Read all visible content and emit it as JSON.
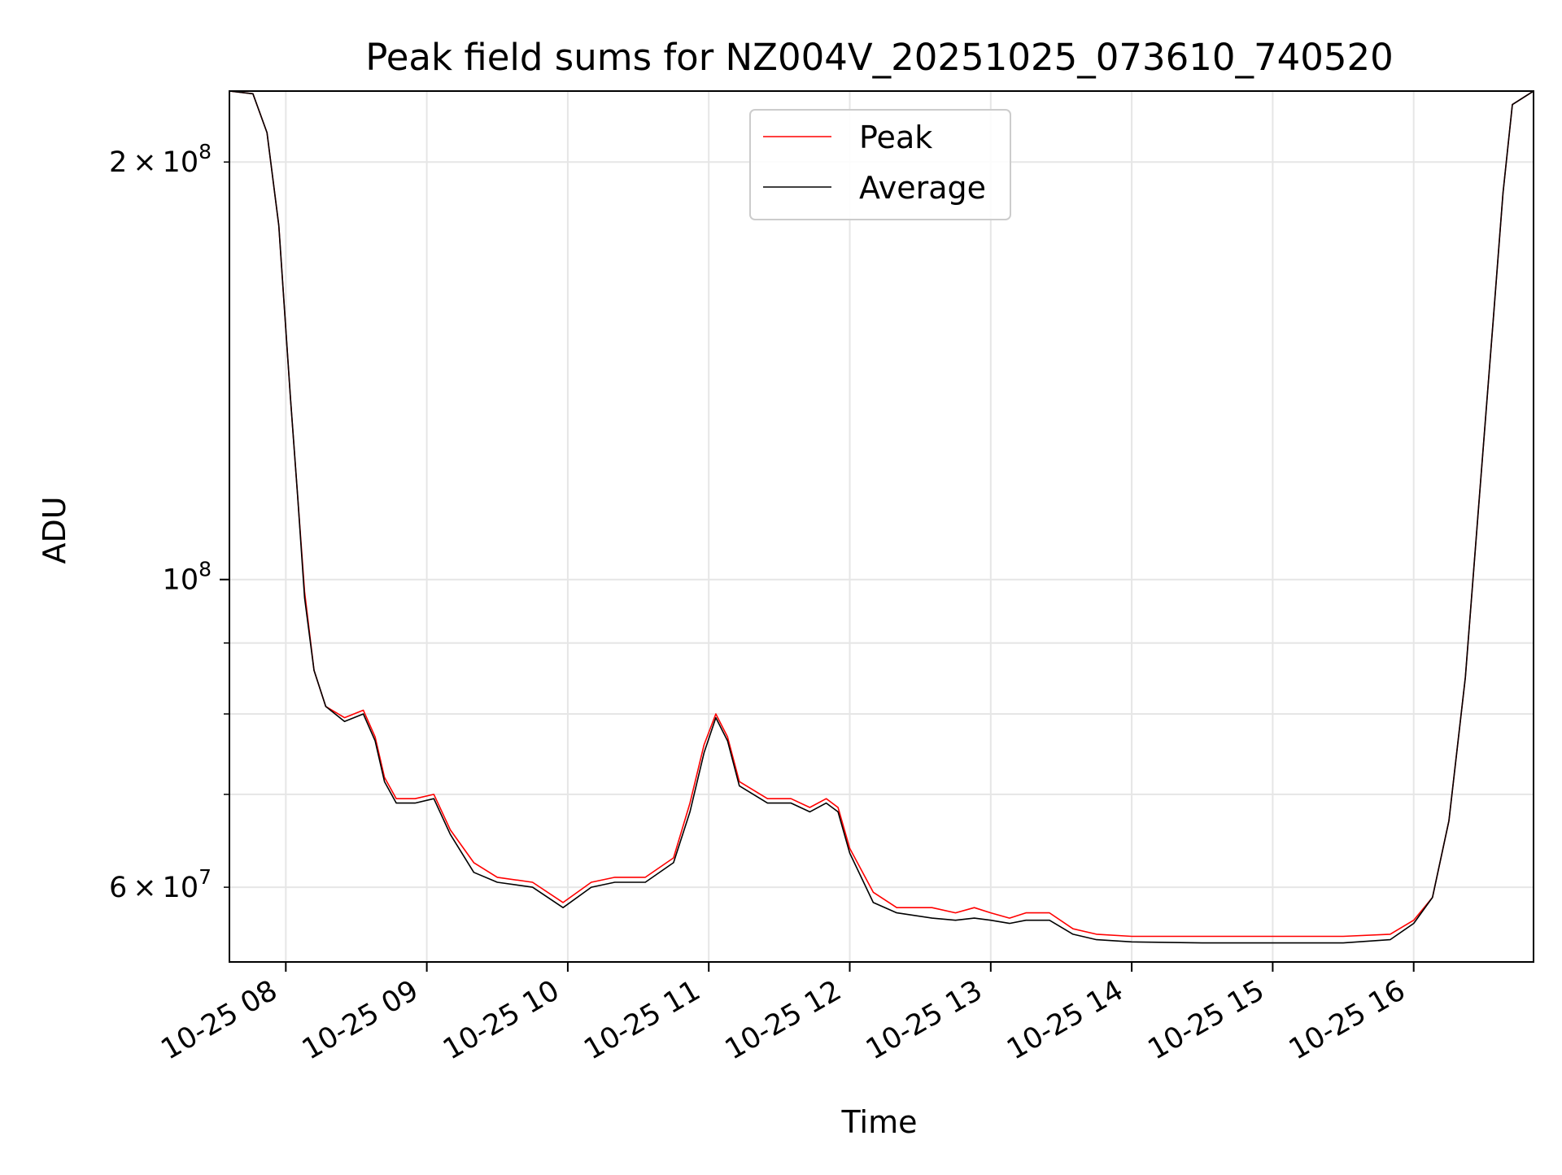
{
  "chart_data": {
    "type": "line",
    "title": "Peak field sums for NZ004V_20251025_073610_740520",
    "xlabel": "Time",
    "ylabel": "ADU",
    "x_axis": {
      "type": "datetime",
      "range": [
        "2025-10-25T07:36",
        "2025-10-25T16:51"
      ],
      "ticks": [
        "2025-10-25T08:00",
        "2025-10-25T09:00",
        "2025-10-25T10:00",
        "2025-10-25T11:00",
        "2025-10-25T12:00",
        "2025-10-25T13:00",
        "2025-10-25T14:00",
        "2025-10-25T15:00",
        "2025-10-25T16:00"
      ],
      "tick_labels": [
        "10-25 08",
        "10-25 09",
        "10-25 10",
        "10-25 11",
        "10-25 12",
        "10-25 13",
        "10-25 14",
        "10-25 15",
        "10-25 16"
      ],
      "tick_label_rotation": 30
    },
    "y_axis": {
      "scale": "log",
      "range": [
        53000000,
        225000000
      ],
      "major_ticks": [
        100000000
      ],
      "minor_labeled_ticks": [
        60000000,
        200000000
      ],
      "tick_labels": [
        {
          "value": 200000000,
          "mantissa": "2",
          "exponent": "8"
        },
        {
          "value": 100000000,
          "mantissa": "",
          "exponent": "8"
        },
        {
          "value": 60000000,
          "mantissa": "6",
          "exponent": "7"
        }
      ],
      "minor_ticks": [
        60000000,
        70000000,
        80000000,
        90000000,
        200000000
      ]
    },
    "grid": true,
    "legend": {
      "placement": "top-center"
    },
    "series": [
      {
        "name": "Peak",
        "color": "#ff0000",
        "x": [
          "2025-10-25T07:36",
          "2025-10-25T07:46",
          "2025-10-25T07:52",
          "2025-10-25T07:57",
          "2025-10-25T08:02",
          "2025-10-25T08:05",
          "2025-10-25T08:08",
          "2025-10-25T08:12",
          "2025-10-25T08:17",
          "2025-10-25T08:25",
          "2025-10-25T08:33",
          "2025-10-25T08:38",
          "2025-10-25T08:42",
          "2025-10-25T08:47",
          "2025-10-25T08:55",
          "2025-10-25T09:03",
          "2025-10-25T09:10",
          "2025-10-25T09:20",
          "2025-10-25T09:30",
          "2025-10-25T09:45",
          "2025-10-25T09:58",
          "2025-10-25T10:10",
          "2025-10-25T10:20",
          "2025-10-25T10:33",
          "2025-10-25T10:45",
          "2025-10-25T10:52",
          "2025-10-25T10:58",
          "2025-10-25T11:03",
          "2025-10-25T11:08",
          "2025-10-25T11:13",
          "2025-10-25T11:25",
          "2025-10-25T11:35",
          "2025-10-25T11:43",
          "2025-10-25T11:50",
          "2025-10-25T11:55",
          "2025-10-25T12:00",
          "2025-10-25T12:10",
          "2025-10-25T12:20",
          "2025-10-25T12:35",
          "2025-10-25T12:45",
          "2025-10-25T12:53",
          "2025-10-25T13:00",
          "2025-10-25T13:08",
          "2025-10-25T13:15",
          "2025-10-25T13:25",
          "2025-10-25T13:35",
          "2025-10-25T13:45",
          "2025-10-25T14:00",
          "2025-10-25T14:30",
          "2025-10-25T15:00",
          "2025-10-25T15:30",
          "2025-10-25T15:50",
          "2025-10-25T16:00",
          "2025-10-25T16:08",
          "2025-10-25T16:15",
          "2025-10-25T16:22",
          "2025-10-25T16:28",
          "2025-10-25T16:34",
          "2025-10-25T16:38",
          "2025-10-25T16:42",
          "2025-10-25T16:51"
        ],
        "values": [
          225000000,
          224000000,
          210000000,
          180000000,
          135000000,
          115000000,
          98000000,
          86000000,
          81000000,
          79500000,
          80500000,
          77000000,
          72000000,
          69500000,
          69500000,
          70000000,
          66000000,
          62500000,
          61000000,
          60500000,
          58500000,
          60500000,
          61000000,
          61000000,
          63000000,
          69000000,
          76000000,
          80000000,
          77000000,
          71500000,
          69500000,
          69500000,
          68500000,
          69500000,
          68500000,
          64000000,
          59500000,
          58000000,
          58000000,
          57500000,
          58000000,
          57500000,
          57000000,
          57500000,
          57500000,
          56000000,
          55500000,
          55300000,
          55300000,
          55300000,
          55300000,
          55500000,
          56800000,
          59000000,
          67000000,
          85000000,
          115000000,
          155000000,
          190000000,
          220000000,
          225000000
        ]
      },
      {
        "name": "Average",
        "color": "#000000",
        "x": [
          "2025-10-25T07:36",
          "2025-10-25T07:46",
          "2025-10-25T07:52",
          "2025-10-25T07:57",
          "2025-10-25T08:02",
          "2025-10-25T08:05",
          "2025-10-25T08:08",
          "2025-10-25T08:12",
          "2025-10-25T08:17",
          "2025-10-25T08:25",
          "2025-10-25T08:33",
          "2025-10-25T08:38",
          "2025-10-25T08:42",
          "2025-10-25T08:47",
          "2025-10-25T08:55",
          "2025-10-25T09:03",
          "2025-10-25T09:10",
          "2025-10-25T09:20",
          "2025-10-25T09:30",
          "2025-10-25T09:45",
          "2025-10-25T09:58",
          "2025-10-25T10:10",
          "2025-10-25T10:20",
          "2025-10-25T10:33",
          "2025-10-25T10:45",
          "2025-10-25T10:52",
          "2025-10-25T10:58",
          "2025-10-25T11:03",
          "2025-10-25T11:08",
          "2025-10-25T11:13",
          "2025-10-25T11:25",
          "2025-10-25T11:35",
          "2025-10-25T11:43",
          "2025-10-25T11:50",
          "2025-10-25T11:55",
          "2025-10-25T12:00",
          "2025-10-25T12:10",
          "2025-10-25T12:20",
          "2025-10-25T12:35",
          "2025-10-25T12:45",
          "2025-10-25T12:53",
          "2025-10-25T13:00",
          "2025-10-25T13:08",
          "2025-10-25T13:15",
          "2025-10-25T13:25",
          "2025-10-25T13:35",
          "2025-10-25T13:45",
          "2025-10-25T14:00",
          "2025-10-25T14:30",
          "2025-10-25T15:00",
          "2025-10-25T15:30",
          "2025-10-25T15:50",
          "2025-10-25T16:00",
          "2025-10-25T16:08",
          "2025-10-25T16:15",
          "2025-10-25T16:22",
          "2025-10-25T16:28",
          "2025-10-25T16:34",
          "2025-10-25T16:38",
          "2025-10-25T16:42",
          "2025-10-25T16:51"
        ],
        "values": [
          225000000,
          224000000,
          210000000,
          180000000,
          135000000,
          115000000,
          97000000,
          86000000,
          81000000,
          79000000,
          80000000,
          76500000,
          71500000,
          69000000,
          69000000,
          69500000,
          65500000,
          61500000,
          60500000,
          60000000,
          58000000,
          60000000,
          60500000,
          60500000,
          62500000,
          68000000,
          75000000,
          79500000,
          76500000,
          71000000,
          69000000,
          69000000,
          68000000,
          69000000,
          68000000,
          63500000,
          58500000,
          57500000,
          57000000,
          56800000,
          57000000,
          56800000,
          56500000,
          56800000,
          56800000,
          55500000,
          55000000,
          54800000,
          54700000,
          54700000,
          54700000,
          55000000,
          56500000,
          59000000,
          67000000,
          85000000,
          115000000,
          155000000,
          190000000,
          220000000,
          225000000
        ]
      }
    ]
  }
}
